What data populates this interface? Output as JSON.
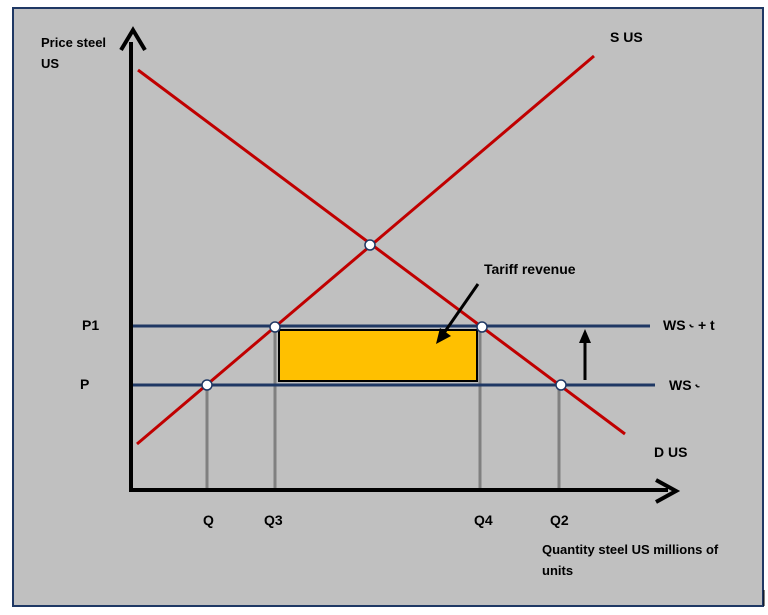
{
  "title": "",
  "axis": {
    "y_label_line1": "Price steel",
    "y_label_line2": "US",
    "x_label_line1": "Quantity steel US millions of",
    "x_label_line2": "units"
  },
  "curves": {
    "supply_label": "S US",
    "demand_label": "D US",
    "world_supply_label": "WS ˞",
    "world_supply_tariff_label": "WS ˞ + t"
  },
  "prices": {
    "p1": "P1",
    "p": "P"
  },
  "quantities": {
    "q": "Q",
    "q3": "Q3",
    "q4": "Q4",
    "q2": "Q2"
  },
  "annotation": {
    "tariff_revenue": "Tariff revenue"
  },
  "colors": {
    "background": "#c0c0c0",
    "frame": "#1f3864",
    "supply_demand": "#c00000",
    "world_price": "#1f3864",
    "tariff_box": "#ffc000",
    "drop_lines": "#808080",
    "axis": "#000000"
  }
}
